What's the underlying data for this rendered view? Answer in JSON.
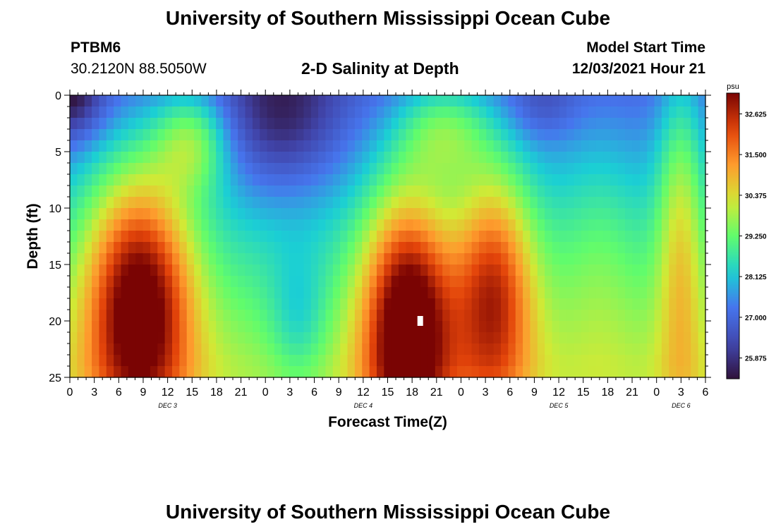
{
  "page": {
    "title_top": "University of Southern Mississippi Ocean Cube",
    "title_bottom": "University of Southern Mississippi Ocean Cube"
  },
  "header": {
    "station": "PTBM6",
    "coords": "30.2120N  88.5050W",
    "plot_title": "2-D Salinity at Depth",
    "model_label": "Model Start Time",
    "model_time": "12/03/2021 Hour 21"
  },
  "chart_data": {
    "type": "heatmap",
    "title": "2-D Salinity at Depth",
    "xlabel": "Forecast Time(Z)",
    "ylabel": "Depth (ft)",
    "y_reversed": true,
    "ylim": [
      0,
      25
    ],
    "y_ticks": [
      "0",
      "5",
      "10",
      "15",
      "20",
      "25"
    ],
    "x_ticks": [
      "0",
      "3",
      "6",
      "9",
      "12",
      "15",
      "18",
      "21",
      "0",
      "3",
      "6",
      "9",
      "12",
      "15",
      "18",
      "21",
      "0",
      "3",
      "6",
      "9",
      "12",
      "15",
      "18",
      "21",
      "0",
      "3",
      "6"
    ],
    "x_hours": [
      0,
      78
    ],
    "day_labels": [
      {
        "label": "DEC 3",
        "hour": 12
      },
      {
        "label": "DEC 4",
        "hour": 36
      },
      {
        "label": "DEC 5",
        "hour": 60
      },
      {
        "label": "DEC 6",
        "hour": 75
      }
    ],
    "colorbar": {
      "unit": "psu",
      "range": [
        25.3,
        33.2
      ],
      "ticks": [
        "32.625",
        "31.500",
        "30.375",
        "29.250",
        "28.125",
        "27.000",
        "25.875"
      ],
      "tick_values": [
        32.625,
        31.5,
        30.375,
        29.25,
        28.125,
        27.0,
        25.875
      ]
    },
    "marker": {
      "hour": 43,
      "depth_ft": 20
    },
    "grid": false
  }
}
